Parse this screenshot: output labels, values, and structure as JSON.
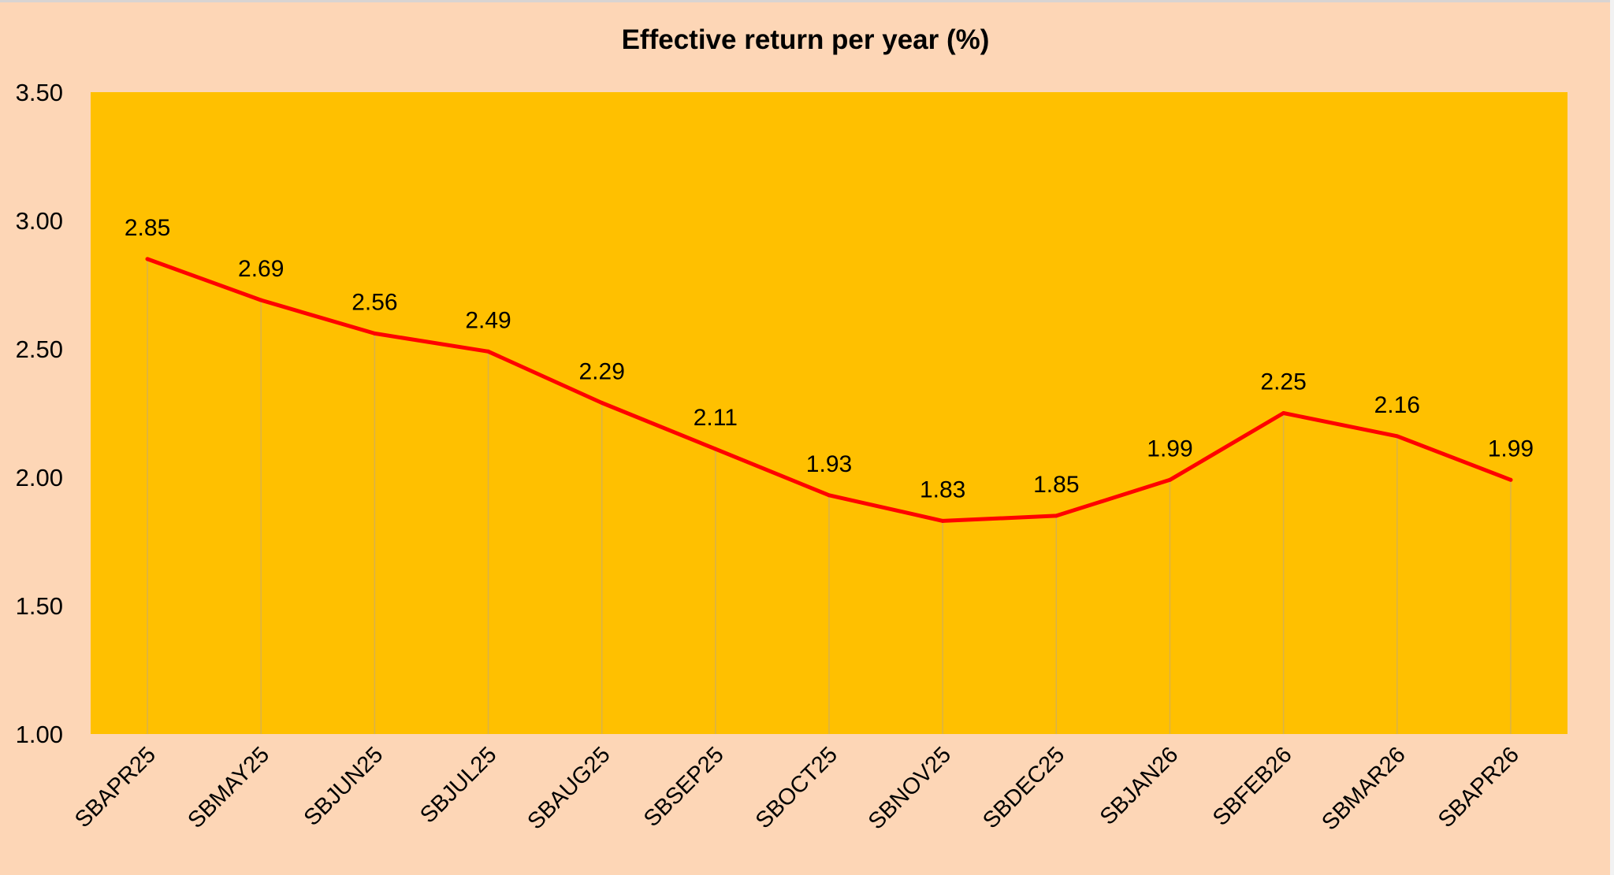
{
  "chart_data": {
    "type": "line",
    "title": "Effective return per year (%)",
    "xlabel": "",
    "ylabel": "",
    "categories": [
      "SBAPR25",
      "SBMAY25",
      "SBJUN25",
      "SBJUL25",
      "SBAUG25",
      "SBSEP25",
      "SBOCT25",
      "SBNOV25",
      "SBDEC25",
      "SBJAN26",
      "SBFEB26",
      "SBMAR26",
      "SBAPR26"
    ],
    "series": [
      {
        "name": "Effective return per year (%)",
        "values": [
          2.85,
          2.69,
          2.56,
          2.49,
          2.29,
          2.11,
          1.93,
          1.83,
          1.85,
          1.99,
          2.25,
          2.16,
          1.99
        ]
      }
    ],
    "data_labels": [
      "2.85",
      "2.69",
      "2.56",
      "2.49",
      "2.29",
      "2.11",
      "1.93",
      "1.83",
      "1.85",
      "1.99",
      "2.25",
      "2.16",
      "1.99"
    ],
    "ylim": [
      1.0,
      3.5
    ],
    "yticks": [
      1.0,
      1.5,
      2.0,
      2.5,
      3.0,
      3.5
    ],
    "ytick_labels": [
      "1.00",
      "1.50",
      "2.00",
      "2.50",
      "3.00",
      "3.50"
    ],
    "drop_lines": true,
    "grid": false,
    "legend": "none",
    "colors": {
      "page_bg": "#fdd6b6",
      "plot_bg": "#ffc000",
      "line": "#ff0000",
      "drop_line": "#d9b24a",
      "text": "#000000"
    }
  }
}
